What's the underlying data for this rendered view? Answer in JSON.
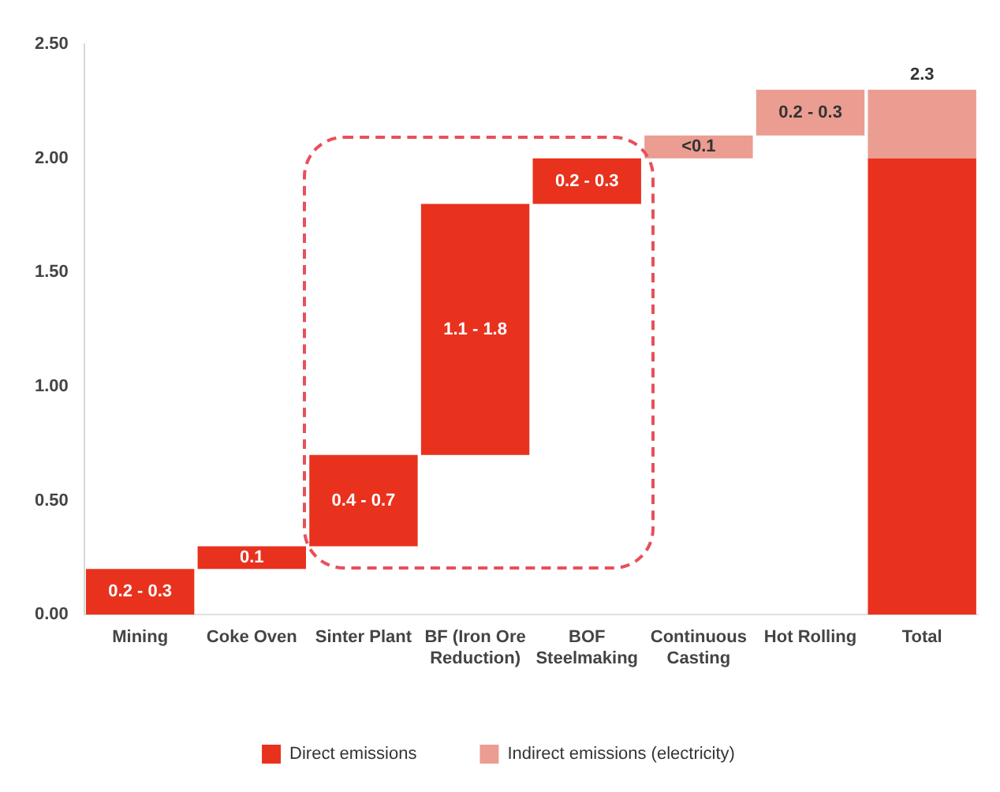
{
  "chart_data": {
    "type": "bar",
    "categories": [
      "Mining",
      "Coke Oven",
      "Sinter Plant",
      "BF (Iron Ore Reduction)",
      "BOF Steelmaking",
      "Continuous Casting",
      "Hot Rolling",
      "Total"
    ],
    "series": [
      {
        "name": "Direct emissions",
        "color": "#e8321e",
        "base": [
          0,
          0.2,
          0.3,
          0.7,
          1.8,
          null,
          null,
          0
        ],
        "values": [
          0.2,
          0.1,
          0.4,
          1.1,
          0.2,
          null,
          null,
          2.0
        ],
        "value_labels": [
          "0.2 - 0.3",
          "0.1",
          "0.4 - 0.7",
          "1.1 - 1.8",
          "0.2 - 0.3",
          null,
          null,
          null
        ]
      },
      {
        "name": "Indirect emissions (electricity)",
        "color": "#eb9d91",
        "base": [
          null,
          null,
          null,
          null,
          null,
          2.0,
          2.1,
          2.0
        ],
        "values": [
          null,
          null,
          null,
          null,
          null,
          0.1,
          0.2,
          0.3
        ],
        "value_labels": [
          null,
          null,
          null,
          null,
          null,
          "<0.1",
          "0.2 - 0.3",
          null
        ]
      }
    ],
    "totals": [
      null,
      null,
      null,
      null,
      null,
      null,
      null,
      "2.3"
    ],
    "ylim": [
      0,
      2.5
    ],
    "yticks": [
      {
        "value": 0,
        "label": "0.00"
      },
      {
        "value": 0.5,
        "label": "0.50"
      },
      {
        "value": 1,
        "label": "1.00"
      },
      {
        "value": 1.5,
        "label": "1.50"
      },
      {
        "value": 2,
        "label": "2.00"
      },
      {
        "value": 2.5,
        "label": "2.50"
      }
    ],
    "grid": false,
    "legend": "bottom"
  }
}
